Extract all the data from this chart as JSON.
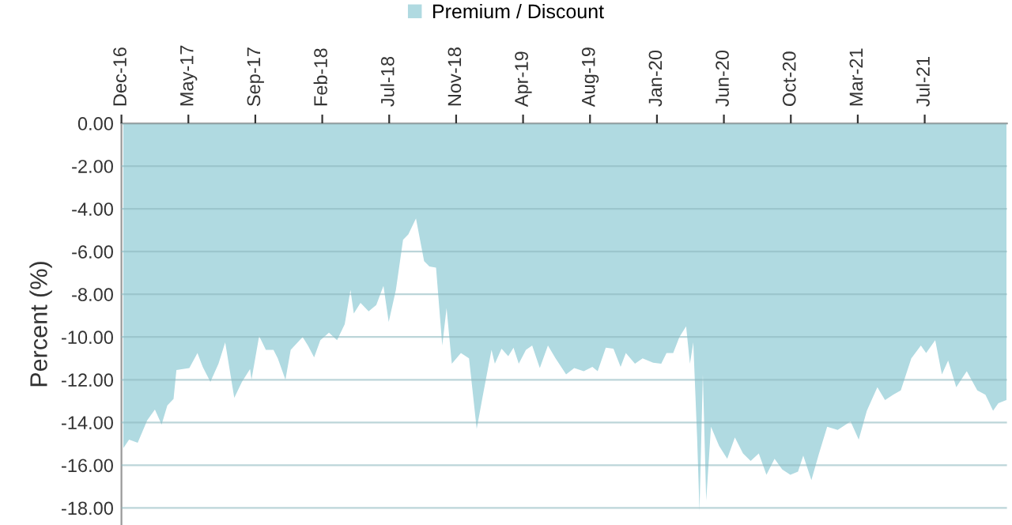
{
  "chart_data": {
    "type": "area",
    "ylabel": "Percent (%)",
    "x": [
      "2016-12-27",
      "2017-01-08",
      "2017-01-26",
      "2017-02-15",
      "2017-03-03",
      "2017-03-17",
      "2017-03-29",
      "2017-04-11",
      "2017-04-17",
      "2017-05-14",
      "2017-05-31",
      "2017-06-11",
      "2017-06-27",
      "2017-07-14",
      "2017-07-28",
      "2017-08-16",
      "2017-09-01",
      "2017-09-18",
      "2017-09-21",
      "2017-10-07",
      "2017-10-21",
      "2017-11-06",
      "2017-11-15",
      "2017-12-01",
      "2017-12-12",
      "2018-01-06",
      "2018-01-17",
      "2018-01-30",
      "2018-02-12",
      "2018-03-02",
      "2018-03-19",
      "2018-04-04",
      "2018-04-16",
      "2018-04-23",
      "2018-05-07",
      "2018-05-24",
      "2018-06-09",
      "2018-06-24",
      "2018-07-05",
      "2018-07-20",
      "2018-08-04",
      "2018-08-15",
      "2018-08-31",
      "2018-09-17",
      "2018-09-28",
      "2018-10-12",
      "2018-10-25",
      "2018-11-03",
      "2018-11-14",
      "2018-12-03",
      "2018-12-20",
      "2019-01-05",
      "2019-01-19",
      "2019-02-05",
      "2019-02-12",
      "2019-02-26",
      "2019-03-12",
      "2019-03-23",
      "2019-04-03",
      "2019-04-18",
      "2019-05-01",
      "2019-05-17",
      "2019-06-03",
      "2019-06-19",
      "2019-07-11",
      "2019-07-28",
      "2019-08-17",
      "2019-09-04",
      "2019-09-15",
      "2019-10-02",
      "2019-10-18",
      "2019-11-02",
      "2019-11-13",
      "2019-12-02",
      "2019-12-18",
      "2020-01-09",
      "2020-01-26",
      "2020-02-06",
      "2020-02-20",
      "2020-03-04",
      "2020-03-18",
      "2020-03-26",
      "2020-04-02",
      "2020-04-10",
      "2020-04-15",
      "2020-04-22",
      "2020-04-29",
      "2020-05-09",
      "2020-05-26",
      "2020-06-12",
      "2020-06-28",
      "2020-07-15",
      "2020-07-31",
      "2020-08-17",
      "2020-09-02",
      "2020-09-19",
      "2020-10-05",
      "2020-10-22",
      "2020-11-07",
      "2020-11-18",
      "2020-12-05",
      "2020-12-21",
      "2021-01-07",
      "2021-01-29",
      "2021-02-25",
      "2021-03-14",
      "2021-03-31",
      "2021-04-22",
      "2021-05-08",
      "2021-05-25",
      "2021-06-10",
      "2021-07-02",
      "2021-07-22",
      "2021-08-02",
      "2021-08-21",
      "2021-09-04",
      "2021-09-17",
      "2021-10-04",
      "2021-10-26",
      "2021-11-17",
      "2021-12-04",
      "2021-12-20",
      "2021-12-31",
      "2022-01-17"
    ],
    "series": [
      {
        "name": "Premium / Discount",
        "color": "#b0dae1",
        "values": [
          -15.2,
          -14.8,
          -14.95,
          -13.9,
          -13.4,
          -14.1,
          -13.2,
          -12.9,
          -11.55,
          -11.45,
          -10.75,
          -11.4,
          -12.1,
          -11.25,
          -10.25,
          -12.85,
          -12.1,
          -11.5,
          -12.0,
          -9.95,
          -10.6,
          -10.6,
          -11.0,
          -12.0,
          -10.6,
          -10.0,
          -10.4,
          -10.95,
          -10.15,
          -9.8,
          -10.15,
          -9.4,
          -7.8,
          -8.9,
          -8.4,
          -8.8,
          -8.5,
          -7.6,
          -9.3,
          -7.8,
          -5.45,
          -5.2,
          -4.45,
          -6.45,
          -6.7,
          -6.75,
          -10.4,
          -8.65,
          -11.25,
          -10.75,
          -11.0,
          -14.3,
          -12.6,
          -10.6,
          -11.25,
          -10.55,
          -10.9,
          -10.5,
          -11.25,
          -10.6,
          -10.4,
          -11.45,
          -10.4,
          -11.0,
          -11.75,
          -11.45,
          -11.6,
          -11.4,
          -11.6,
          -10.5,
          -10.55,
          -11.4,
          -10.75,
          -11.25,
          -11.0,
          -11.2,
          -11.25,
          -10.75,
          -10.75,
          -10.0,
          -9.5,
          -11.25,
          -10.25,
          -14.7,
          -18.15,
          -11.75,
          -17.65,
          -14.2,
          -15.1,
          -15.7,
          -14.7,
          -15.45,
          -15.8,
          -15.45,
          -16.45,
          -15.7,
          -16.2,
          -16.45,
          -16.3,
          -15.55,
          -16.7,
          -15.45,
          -14.2,
          -14.35,
          -13.95,
          -14.8,
          -13.45,
          -12.35,
          -12.95,
          -12.7,
          -12.5,
          -11.0,
          -10.4,
          -10.75,
          -10.15,
          -11.75,
          -11.1,
          -12.35,
          -11.6,
          -12.5,
          -12.7,
          -13.45,
          -13.1,
          -12.95
        ]
      }
    ],
    "xlim": [
      "2016-12-23",
      "2022-01-18"
    ],
    "xticks": [
      {
        "value": "2016-12-23",
        "label": "Dec-16"
      },
      {
        "value": "2017-05-12",
        "label": "May-17"
      },
      {
        "value": "2017-09-29",
        "label": "Sep-17"
      },
      {
        "value": "2018-02-16",
        "label": "Feb-18"
      },
      {
        "value": "2018-07-06",
        "label": "Jul-18"
      },
      {
        "value": "2018-11-23",
        "label": "Nov-18"
      },
      {
        "value": "2019-04-12",
        "label": "Apr-19"
      },
      {
        "value": "2019-08-30",
        "label": "Aug-19"
      },
      {
        "value": "2020-01-17",
        "label": "Jan-20"
      },
      {
        "value": "2020-06-05",
        "label": "Jun-20"
      },
      {
        "value": "2020-10-23",
        "label": "Oct-20"
      },
      {
        "value": "2021-03-12",
        "label": "Mar-21"
      },
      {
        "value": "2021-07-30",
        "label": "Jul-21"
      }
    ],
    "ylim": [
      -18.8,
      0
    ],
    "yticks": [
      {
        "value": 0,
        "label": "0.00"
      },
      {
        "value": -2,
        "label": "-2.00"
      },
      {
        "value": -4,
        "label": "-4.00"
      },
      {
        "value": -6,
        "label": "-6.00"
      },
      {
        "value": -8,
        "label": "-8.00"
      },
      {
        "value": -10,
        "label": "-10.00"
      },
      {
        "value": -12,
        "label": "-12.00"
      },
      {
        "value": -14,
        "label": "-14.00"
      },
      {
        "value": -16,
        "label": "-16.00"
      },
      {
        "value": -18,
        "label": "-18.00"
      }
    ],
    "grid": "y",
    "legend": "top"
  }
}
